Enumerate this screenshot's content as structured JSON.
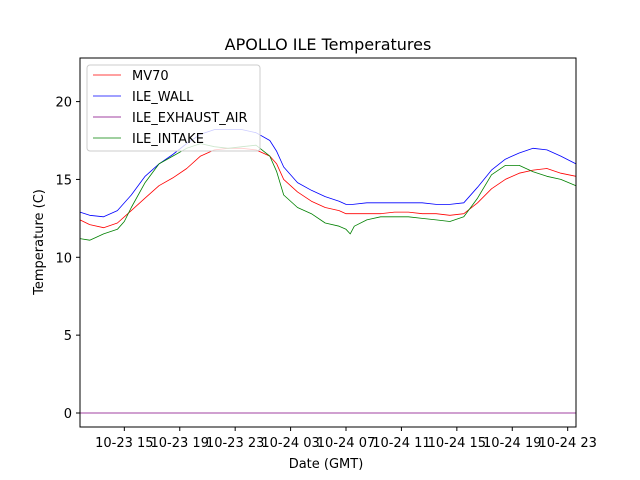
{
  "chart_data": {
    "type": "line",
    "title": "APOLLO ILE Temperatures",
    "xlabel": "Date (GMT)",
    "ylabel": "Temperature (C)",
    "x_unit": "hours since 2024-10-23 00:00 GMT",
    "xlim": [
      11.8,
      47.6
    ],
    "ylim": [
      -0.9,
      22.8
    ],
    "x_ticks": [
      {
        "value": 15,
        "label": "10-23 15"
      },
      {
        "value": 19,
        "label": "10-23 19"
      },
      {
        "value": 23,
        "label": "10-23 23"
      },
      {
        "value": 27,
        "label": "10-24 03"
      },
      {
        "value": 31,
        "label": "10-24 07"
      },
      {
        "value": 35,
        "label": "10-24 11"
      },
      {
        "value": 39,
        "label": "10-24 15"
      },
      {
        "value": 43,
        "label": "10-24 19"
      },
      {
        "value": 47,
        "label": "10-24 23"
      }
    ],
    "y_ticks": [
      {
        "value": 0,
        "label": "0"
      },
      {
        "value": 5,
        "label": "5"
      },
      {
        "value": 10,
        "label": "10"
      },
      {
        "value": 15,
        "label": "15"
      },
      {
        "value": 20,
        "label": "20"
      }
    ],
    "grid": false,
    "legend_position": "top-left",
    "series": [
      {
        "name": "MV70",
        "color": "#ff0000",
        "points": [
          [
            11.8,
            12.4
          ],
          [
            12.5,
            12.1
          ],
          [
            13.5,
            11.9
          ],
          [
            14.5,
            12.2
          ],
          [
            15.5,
            13.0
          ],
          [
            16.5,
            13.8
          ],
          [
            17.5,
            14.6
          ],
          [
            18.5,
            15.1
          ],
          [
            19.5,
            15.7
          ],
          [
            20.5,
            16.5
          ],
          [
            21.5,
            16.9
          ],
          [
            22.5,
            17.0
          ],
          [
            23.5,
            17.0
          ],
          [
            24.5,
            16.9
          ],
          [
            25.5,
            16.5
          ],
          [
            26.0,
            16.0
          ],
          [
            26.5,
            15.0
          ],
          [
            27.5,
            14.2
          ],
          [
            28.5,
            13.6
          ],
          [
            29.5,
            13.2
          ],
          [
            30.5,
            13.0
          ],
          [
            31.0,
            12.8
          ],
          [
            31.5,
            12.8
          ],
          [
            32.5,
            12.8
          ],
          [
            33.5,
            12.8
          ],
          [
            34.5,
            12.9
          ],
          [
            35.5,
            12.9
          ],
          [
            36.5,
            12.8
          ],
          [
            37.5,
            12.8
          ],
          [
            38.5,
            12.7
          ],
          [
            39.5,
            12.8
          ],
          [
            40.5,
            13.5
          ],
          [
            41.5,
            14.4
          ],
          [
            42.5,
            15.0
          ],
          [
            43.5,
            15.4
          ],
          [
            44.5,
            15.6
          ],
          [
            45.5,
            15.7
          ],
          [
            46.5,
            15.4
          ],
          [
            47.6,
            15.2
          ]
        ]
      },
      {
        "name": "ILE_WALL",
        "color": "#0000ff",
        "points": [
          [
            11.8,
            12.9
          ],
          [
            12.5,
            12.7
          ],
          [
            13.5,
            12.6
          ],
          [
            14.5,
            13.0
          ],
          [
            15.5,
            14.0
          ],
          [
            16.5,
            15.2
          ],
          [
            17.5,
            16.0
          ],
          [
            18.5,
            16.6
          ],
          [
            19.5,
            17.3
          ],
          [
            20.5,
            17.9
          ],
          [
            21.5,
            18.2
          ],
          [
            22.5,
            18.2
          ],
          [
            23.5,
            18.2
          ],
          [
            24.5,
            18.0
          ],
          [
            25.5,
            17.5
          ],
          [
            26.0,
            16.8
          ],
          [
            26.5,
            15.8
          ],
          [
            27.5,
            14.8
          ],
          [
            28.5,
            14.3
          ],
          [
            29.5,
            13.9
          ],
          [
            30.5,
            13.6
          ],
          [
            31.0,
            13.4
          ],
          [
            31.5,
            13.4
          ],
          [
            32.5,
            13.5
          ],
          [
            33.5,
            13.5
          ],
          [
            34.5,
            13.5
          ],
          [
            35.5,
            13.5
          ],
          [
            36.5,
            13.5
          ],
          [
            37.5,
            13.4
          ],
          [
            38.5,
            13.4
          ],
          [
            39.5,
            13.5
          ],
          [
            40.5,
            14.5
          ],
          [
            41.5,
            15.6
          ],
          [
            42.5,
            16.3
          ],
          [
            43.5,
            16.7
          ],
          [
            44.5,
            17.0
          ],
          [
            45.5,
            16.9
          ],
          [
            46.5,
            16.5
          ],
          [
            47.6,
            16.0
          ]
        ]
      },
      {
        "name": "ILE_EXHAUST_AIR",
        "color": "#800080",
        "points": [
          [
            11.8,
            0.0
          ],
          [
            47.6,
            0.0
          ]
        ]
      },
      {
        "name": "ILE_INTAKE",
        "color": "#008000",
        "points": [
          [
            11.8,
            11.2
          ],
          [
            12.5,
            11.1
          ],
          [
            13.0,
            11.3
          ],
          [
            13.5,
            11.5
          ],
          [
            14.5,
            11.8
          ],
          [
            15.0,
            12.3
          ],
          [
            15.5,
            13.2
          ],
          [
            16.5,
            14.8
          ],
          [
            17.5,
            16.0
          ],
          [
            18.5,
            16.5
          ],
          [
            19.5,
            17.0
          ],
          [
            20.5,
            17.3
          ],
          [
            21.5,
            17.1
          ],
          [
            22.5,
            17.0
          ],
          [
            23.5,
            17.1
          ],
          [
            24.5,
            17.2
          ],
          [
            25.5,
            16.5
          ],
          [
            26.0,
            15.5
          ],
          [
            26.5,
            14.0
          ],
          [
            27.5,
            13.2
          ],
          [
            28.5,
            12.8
          ],
          [
            29.5,
            12.2
          ],
          [
            30.5,
            12.0
          ],
          [
            31.0,
            11.8
          ],
          [
            31.3,
            11.5
          ],
          [
            31.6,
            12.0
          ],
          [
            32.5,
            12.4
          ],
          [
            33.5,
            12.6
          ],
          [
            34.5,
            12.6
          ],
          [
            35.5,
            12.6
          ],
          [
            36.5,
            12.5
          ],
          [
            37.5,
            12.4
          ],
          [
            38.5,
            12.3
          ],
          [
            39.5,
            12.6
          ],
          [
            40.5,
            13.8
          ],
          [
            41.5,
            15.3
          ],
          [
            42.5,
            15.9
          ],
          [
            43.5,
            15.9
          ],
          [
            44.5,
            15.5
          ],
          [
            45.5,
            15.2
          ],
          [
            46.5,
            15.0
          ],
          [
            47.6,
            14.6
          ]
        ]
      }
    ]
  }
}
